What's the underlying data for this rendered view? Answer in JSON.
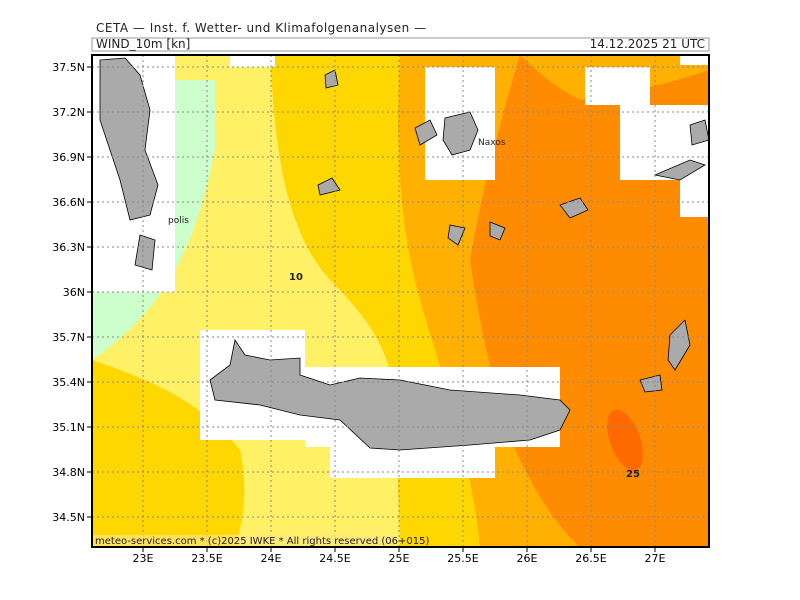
{
  "header": {
    "title": "CETA — Inst. f. Wetter- und Klimafolgenanalysen —",
    "product": "WIND_10m [kn]",
    "time": "14.12.2025 21 UTC"
  },
  "axes": {
    "lon_ticks": [
      "23E",
      "23.5E",
      "24E",
      "24.5E",
      "25E",
      "25.5E",
      "26E",
      "26.5E",
      "27E"
    ],
    "lat_ticks": [
      "37.5N",
      "37.2N",
      "36.9N",
      "36.6N",
      "36.3N",
      "36N",
      "35.7N",
      "35.4N",
      "35.1N",
      "34.8N",
      "34.5N"
    ]
  },
  "contour_labels": [
    "10",
    "25"
  ],
  "places": [
    "Naxos",
    "polis"
  ],
  "footer": "meteo-services.com * (c)2025 IWKE * All rights reserved (06+015)"
}
